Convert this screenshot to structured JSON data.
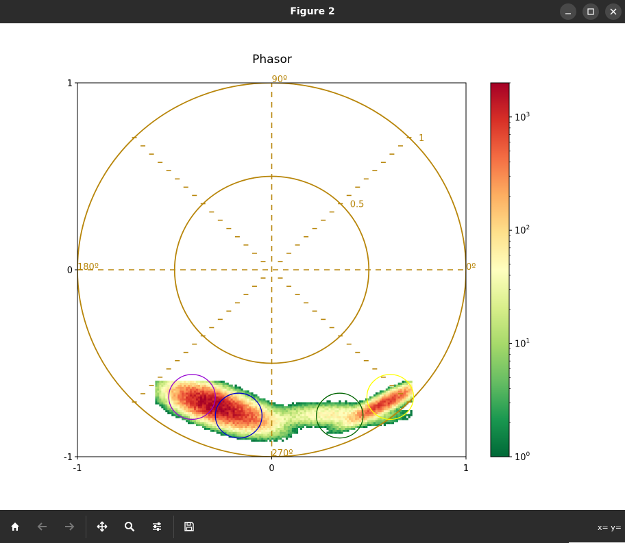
{
  "window": {
    "title": "Figure 2",
    "controls": [
      "minimize-icon",
      "maximize-icon",
      "close-icon"
    ]
  },
  "colors": {
    "titlebar_bg": "#2c2c2c",
    "toolbar_bg": "#2c2c2c",
    "phasor_gold": "#b8860b",
    "circle_purple": "#9400d3",
    "circle_blue": "#0000cd",
    "circle_green": "#006400",
    "circle_yellow": "#ffff00"
  },
  "toolbar": {
    "buttons": [
      {
        "icon": "home-icon",
        "enabled": true
      },
      {
        "icon": "back-arrow-icon",
        "enabled": false
      },
      {
        "icon": "forward-arrow-icon",
        "enabled": false
      },
      {
        "icon": "pan-icon",
        "enabled": true
      },
      {
        "icon": "zoom-icon",
        "enabled": true
      },
      {
        "icon": "configure-subplots-icon",
        "enabled": true
      },
      {
        "icon": "save-icon",
        "enabled": true
      }
    ],
    "coords_text": "x= y="
  },
  "chart_data": {
    "type": "heatmap",
    "subtype": "phasor-2d-histogram",
    "title": "Phasor",
    "xlabel": "",
    "ylabel": "",
    "xlim": [
      -1,
      1
    ],
    "ylim": [
      -1,
      1
    ],
    "x_ticks": [
      "-1",
      "0",
      "1"
    ],
    "y_ticks": [
      "-1",
      "0",
      "1"
    ],
    "polar_overlay": {
      "radii": [
        0.5,
        1.0
      ],
      "radius_labels": [
        "0.5",
        "1"
      ],
      "angle_labels": [
        "0º",
        "90º",
        "180º",
        "270º"
      ],
      "angle_label_degrees": [
        0,
        90,
        180,
        270
      ],
      "dashed_axes_degrees": [
        0,
        90
      ],
      "tick_rays_degrees": [
        45,
        135,
        225,
        315
      ],
      "color": "#b8860b"
    },
    "density_blobs": [
      {
        "cx": -0.32,
        "cy": -0.72,
        "sx": 0.09,
        "sy": 0.035,
        "angle_deg": -18,
        "peak": 2000
      },
      {
        "cx": -0.18,
        "cy": -0.78,
        "sx": 0.09,
        "sy": 0.035,
        "angle_deg": -15,
        "peak": 600
      },
      {
        "cx": 0.0,
        "cy": -0.8,
        "sx": 0.1,
        "sy": 0.02,
        "angle_deg": 0,
        "peak": 15
      },
      {
        "cx": 0.32,
        "cy": -0.78,
        "sx": 0.14,
        "sy": 0.025,
        "angle_deg": 0,
        "peak": 60
      },
      {
        "cx": 0.57,
        "cy": -0.72,
        "sx": 0.09,
        "sy": 0.018,
        "angle_deg": 28,
        "peak": 800
      }
    ],
    "roi_circles": [
      {
        "cx": -0.41,
        "cy": -0.68,
        "r": 0.12,
        "color": "#9400d3"
      },
      {
        "cx": -0.17,
        "cy": -0.78,
        "r": 0.12,
        "color": "#0000cd"
      },
      {
        "cx": 0.35,
        "cy": -0.78,
        "r": 0.12,
        "color": "#006400"
      },
      {
        "cx": 0.61,
        "cy": -0.68,
        "r": 0.12,
        "color": "#ffff00"
      }
    ],
    "colorbar": {
      "scale": "log",
      "range": [
        1,
        2000
      ],
      "tick_values": [
        1,
        10,
        100,
        1000
      ],
      "tick_labels": [
        "10",
        "10",
        "10",
        "10"
      ],
      "tick_exponents": [
        "0",
        "1",
        "2",
        "3"
      ],
      "colormap": "RdYlGn_r"
    }
  }
}
